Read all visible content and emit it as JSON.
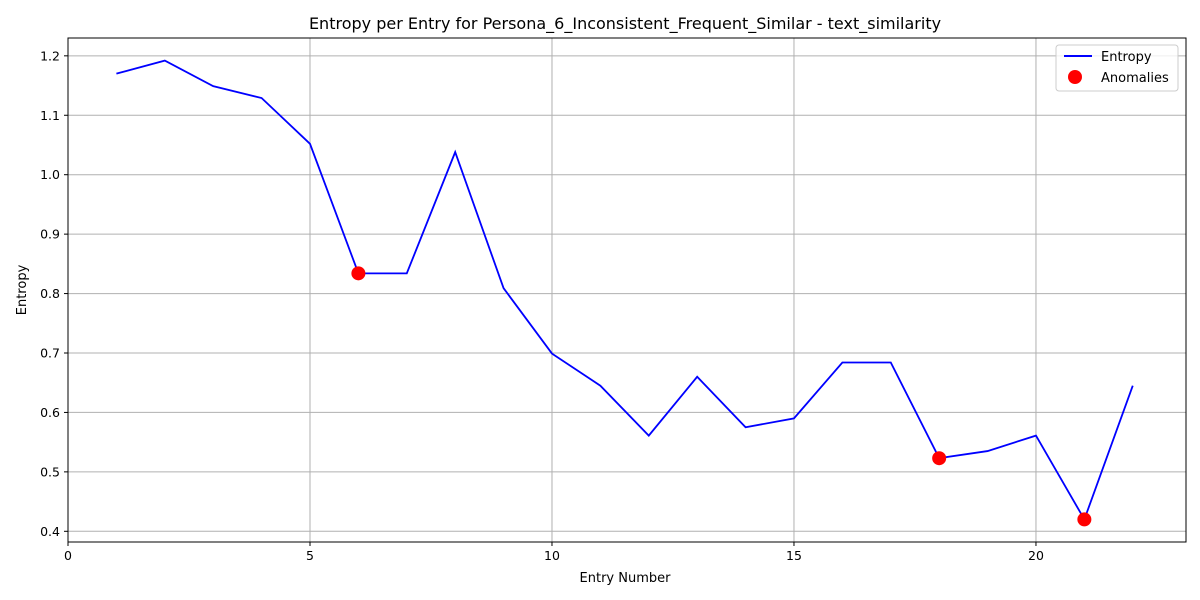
{
  "chart_data": {
    "type": "line",
    "title": "Entropy per Entry for Persona_6_Inconsistent_Frequent_Similar - text_similarity",
    "xlabel": "Entry Number",
    "ylabel": "Entropy",
    "xlim": [
      0,
      23.1
    ],
    "ylim": [
      0.382,
      1.23
    ],
    "xticks": [
      0,
      5,
      10,
      15,
      20
    ],
    "yticks": [
      0.4,
      0.5,
      0.6,
      0.7,
      0.8,
      0.9,
      1.0,
      1.1,
      1.2
    ],
    "ytick_labels": [
      "0.4",
      "0.5",
      "0.6",
      "0.7",
      "0.8",
      "0.9",
      "1.0",
      "1.1",
      "1.2"
    ],
    "grid": true,
    "legend": "top-right",
    "series": [
      {
        "name": "Entropy",
        "kind": "line",
        "color": "#0000ff",
        "x": [
          1,
          2,
          3,
          4,
          5,
          6,
          7,
          8,
          9,
          10,
          11,
          12,
          13,
          14,
          15,
          16,
          17,
          18,
          19,
          20,
          21,
          22
        ],
        "y": [
          1.17,
          1.192,
          1.149,
          1.129,
          1.052,
          0.834,
          0.834,
          1.038,
          0.809,
          0.699,
          0.645,
          0.561,
          0.66,
          0.575,
          0.59,
          0.684,
          0.684,
          0.523,
          0.535,
          0.561,
          0.42,
          0.645
        ]
      },
      {
        "name": "Anomalies",
        "kind": "scatter",
        "color": "#ff0000",
        "x": [
          6,
          18,
          21
        ],
        "y": [
          0.834,
          0.523,
          0.42
        ]
      }
    ]
  }
}
